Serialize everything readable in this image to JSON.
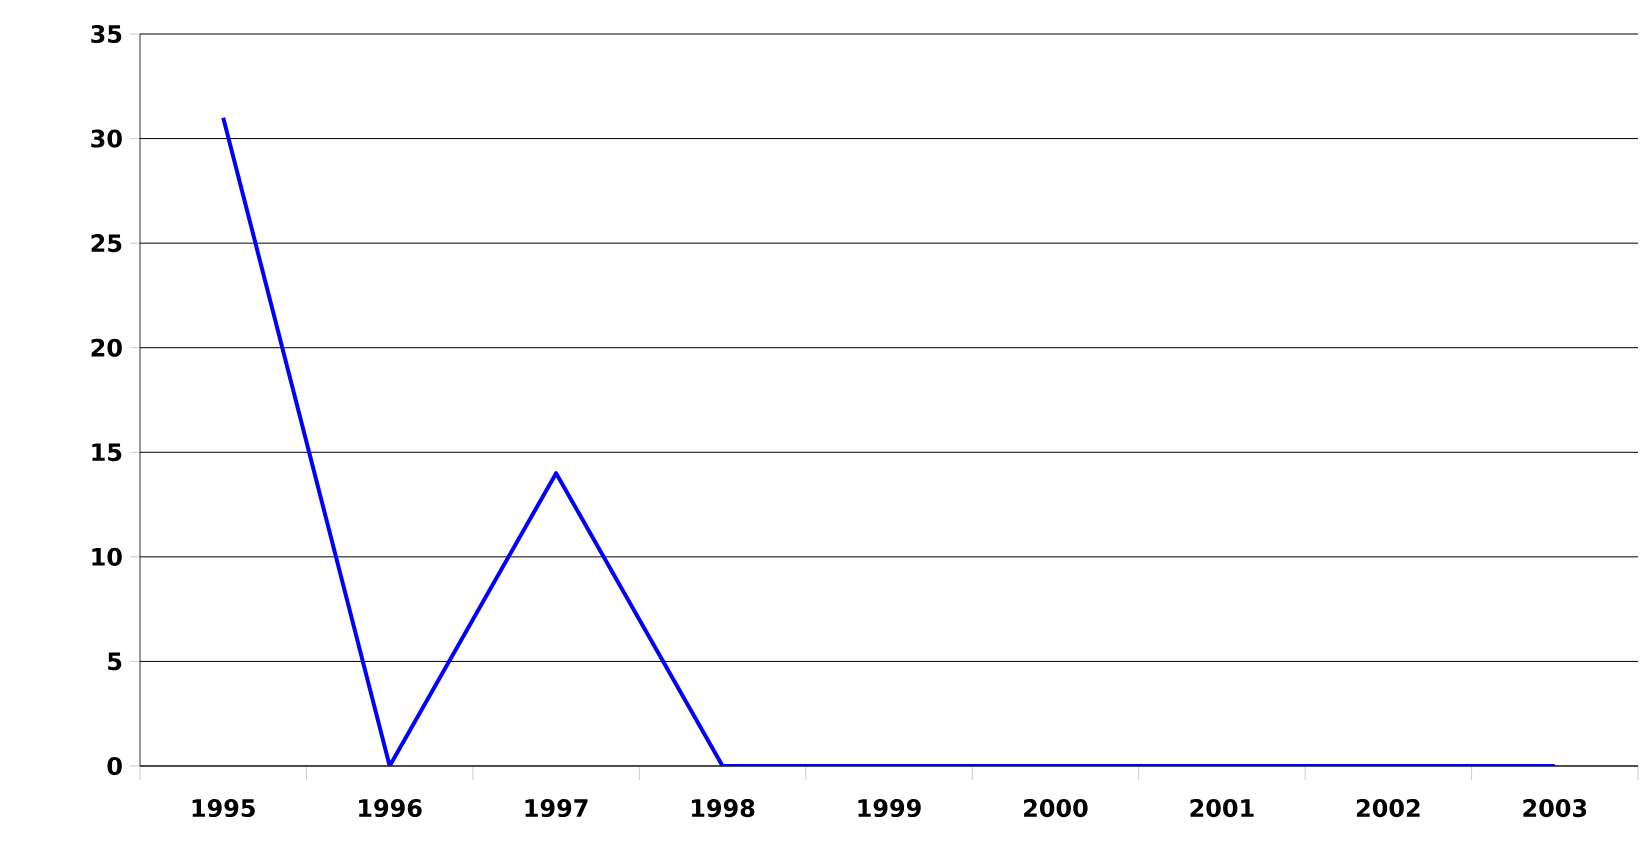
{
  "chart_data": {
    "type": "line",
    "categories": [
      "1995",
      "1996",
      "1997",
      "1998",
      "1999",
      "2000",
      "2001",
      "2002",
      "2003"
    ],
    "series": [
      {
        "color": "#0000ff",
        "values": [
          31,
          0,
          14,
          0,
          0,
          0,
          0,
          0,
          0
        ]
      }
    ],
    "ylim": [
      0,
      35
    ],
    "yticks": [
      0,
      5,
      10,
      15,
      20,
      25,
      30,
      35
    ],
    "grid": "y",
    "marker": "none"
  }
}
